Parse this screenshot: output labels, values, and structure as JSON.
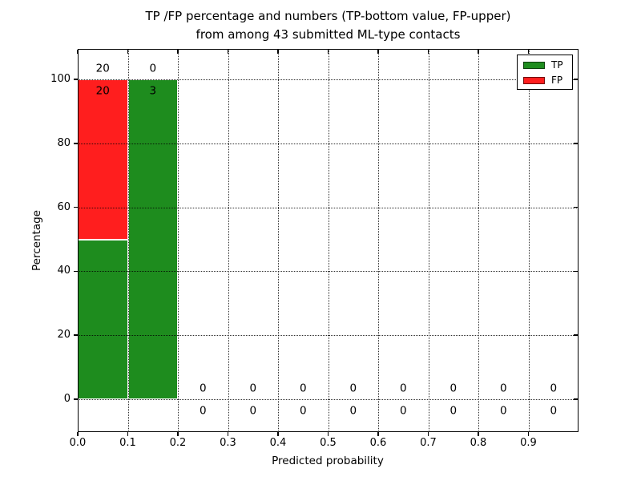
{
  "chart_data": {
    "type": "bar",
    "variant": "stacked-percentage-histogram",
    "title_line1": "TP /FP percentage and numbers (TP-bottom value, FP-upper)",
    "title_line2": "from among 43 submitted ML-type contacts",
    "xlabel": "Predicted probability",
    "ylabel": "Percentage",
    "xlim": [
      0.0,
      1.0
    ],
    "ylim": [
      -10.5,
      109.5
    ],
    "grid": "dotted",
    "legend_position": "upper right",
    "colors": {
      "tp": "#1e8c1e",
      "fp": "#ff1e1e",
      "grid": "#000000",
      "text": "#000000"
    },
    "legend": {
      "items": [
        {
          "label": "TP",
          "color": "#1e8c1e"
        },
        {
          "label": "FP",
          "color": "#ff1e1e"
        }
      ]
    },
    "x_ticks": [
      {
        "value": 0.0,
        "label": "0.0"
      },
      {
        "value": 0.1,
        "label": "0.1"
      },
      {
        "value": 0.2,
        "label": "0.2"
      },
      {
        "value": 0.3,
        "label": "0.3"
      },
      {
        "value": 0.4,
        "label": "0.4"
      },
      {
        "value": 0.5,
        "label": "0.5"
      },
      {
        "value": 0.6,
        "label": "0.6"
      },
      {
        "value": 0.7,
        "label": "0.7"
      },
      {
        "value": 0.8,
        "label": "0.8"
      },
      {
        "value": 0.9,
        "label": "0.9"
      }
    ],
    "y_ticks": [
      {
        "value": 0,
        "label": "0"
      },
      {
        "value": 20,
        "label": "20"
      },
      {
        "value": 40,
        "label": "40"
      },
      {
        "value": 60,
        "label": "60"
      },
      {
        "value": 80,
        "label": "80"
      },
      {
        "value": 100,
        "label": "100"
      }
    ],
    "bins": [
      {
        "x_start": 0.0,
        "x_end": 0.1,
        "tp_percent": 50,
        "fp_percent": 50,
        "tp_count": 20,
        "fp_count": 20
      },
      {
        "x_start": 0.1,
        "x_end": 0.2,
        "tp_percent": 100,
        "fp_percent": 0,
        "tp_count": 3,
        "fp_count": 0
      },
      {
        "x_start": 0.2,
        "x_end": 0.3,
        "tp_percent": 0,
        "fp_percent": 0,
        "tp_count": 0,
        "fp_count": 0
      },
      {
        "x_start": 0.3,
        "x_end": 0.4,
        "tp_percent": 0,
        "fp_percent": 0,
        "tp_count": 0,
        "fp_count": 0
      },
      {
        "x_start": 0.4,
        "x_end": 0.5,
        "tp_percent": 0,
        "fp_percent": 0,
        "tp_count": 0,
        "fp_count": 0
      },
      {
        "x_start": 0.5,
        "x_end": 0.6,
        "tp_percent": 0,
        "fp_percent": 0,
        "tp_count": 0,
        "fp_count": 0
      },
      {
        "x_start": 0.6,
        "x_end": 0.7,
        "tp_percent": 0,
        "fp_percent": 0,
        "tp_count": 0,
        "fp_count": 0
      },
      {
        "x_start": 0.7,
        "x_end": 0.8,
        "tp_percent": 0,
        "fp_percent": 0,
        "tp_count": 0,
        "fp_count": 0
      },
      {
        "x_start": 0.8,
        "x_end": 0.9,
        "tp_percent": 0,
        "fp_percent": 0,
        "tp_count": 0,
        "fp_count": 0
      },
      {
        "x_start": 0.9,
        "x_end": 1.0,
        "tp_percent": 0,
        "fp_percent": 0,
        "tp_count": 0,
        "fp_count": 0
      }
    ]
  }
}
